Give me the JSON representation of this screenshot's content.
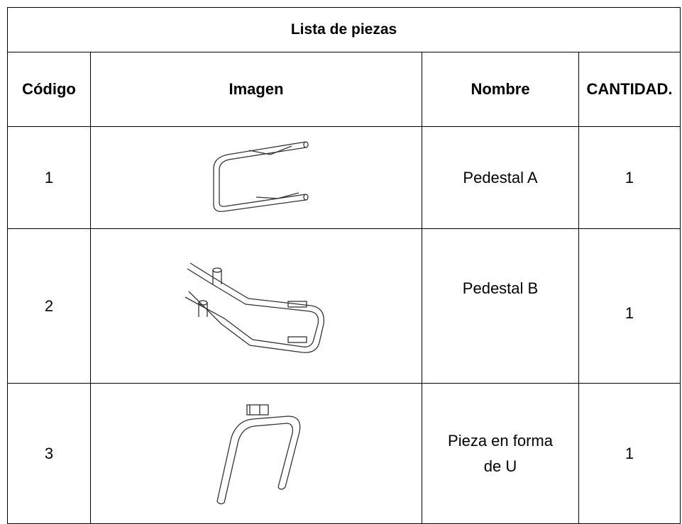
{
  "table": {
    "title": "Lista de piezas",
    "headers": [
      "Código",
      "Imagen",
      "Nombre",
      "CANTIDAD."
    ],
    "rows": [
      {
        "code": "1",
        "name": "Pedestal A",
        "quantity": "1"
      },
      {
        "code": "2",
        "name": "Pedestal B",
        "quantity": "1"
      },
      {
        "code": "3",
        "name": "Pieza en forma de U",
        "quantity": "1"
      }
    ]
  }
}
